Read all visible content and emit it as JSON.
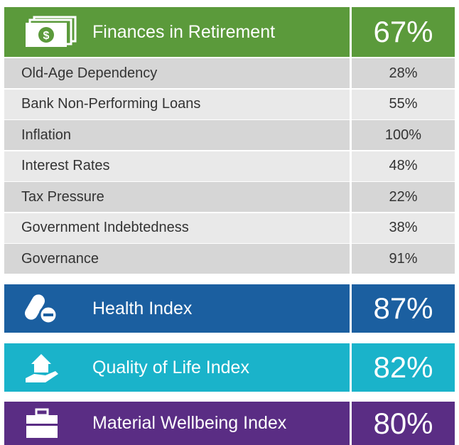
{
  "finances": {
    "title": "Finances in Retirement",
    "value": "67%",
    "rows": [
      {
        "label": "Old-Age Dependency",
        "value": "28%"
      },
      {
        "label": "Bank Non-Performing Loans",
        "value": "55%"
      },
      {
        "label": "Inflation",
        "value": "100%"
      },
      {
        "label": "Interest Rates",
        "value": "48%"
      },
      {
        "label": "Tax Pressure",
        "value": "22%"
      },
      {
        "label": "Government Indebtedness",
        "value": "38%"
      },
      {
        "label": "Governance",
        "value": "91%"
      }
    ]
  },
  "indices": [
    {
      "title": "Health Index",
      "value": "87%"
    },
    {
      "title": "Quality of Life Index",
      "value": "82%"
    },
    {
      "title": "Material Wellbeing Index",
      "value": "80%"
    }
  ]
}
